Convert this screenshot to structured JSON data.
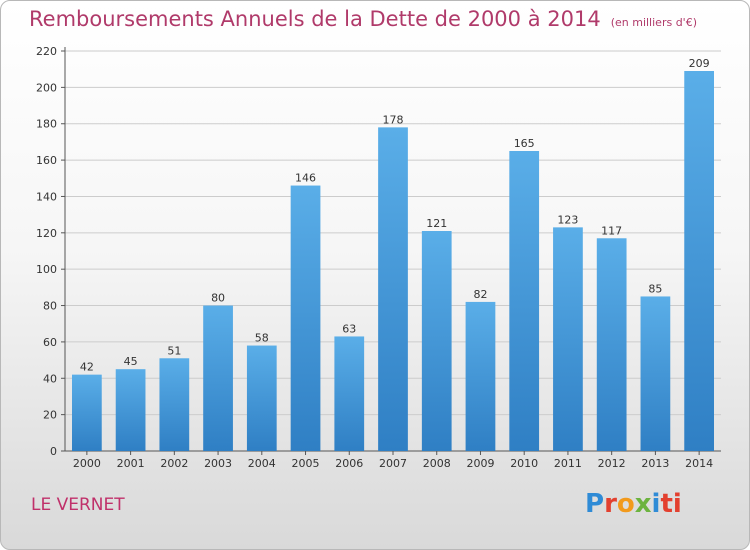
{
  "header": {
    "title": "Remboursements Annuels de la Dette de 2000 à 2014",
    "subtitle": "(en milliers d'€)"
  },
  "footer": {
    "city": "LE VERNET",
    "logo_letters": [
      "P",
      "r",
      "o",
      "x",
      "i",
      "ti"
    ]
  },
  "colors": {
    "bar_top": "#5aaee8",
    "bar_bottom": "#2f7fc4",
    "grid": "#cccccc",
    "title": "#b03a6a"
  },
  "chart_data": {
    "type": "bar",
    "title": "Remboursements Annuels de la Dette de 2000 à 2014",
    "subtitle": "(en milliers d'€)",
    "xlabel": "",
    "ylabel": "",
    "categories": [
      "2000",
      "2001",
      "2002",
      "2003",
      "2004",
      "2005",
      "2006",
      "2007",
      "2008",
      "2009",
      "2010",
      "2011",
      "2012",
      "2013",
      "2014"
    ],
    "values": [
      42,
      45,
      51,
      80,
      58,
      146,
      63,
      178,
      121,
      82,
      165,
      123,
      117,
      85,
      209
    ],
    "ylim": [
      0,
      220
    ],
    "yticks": [
      "0",
      "20",
      "40",
      "60",
      "80",
      "100",
      "120",
      "140",
      "160",
      "180",
      "200",
      "220"
    ],
    "grid": true,
    "legend": "none"
  }
}
